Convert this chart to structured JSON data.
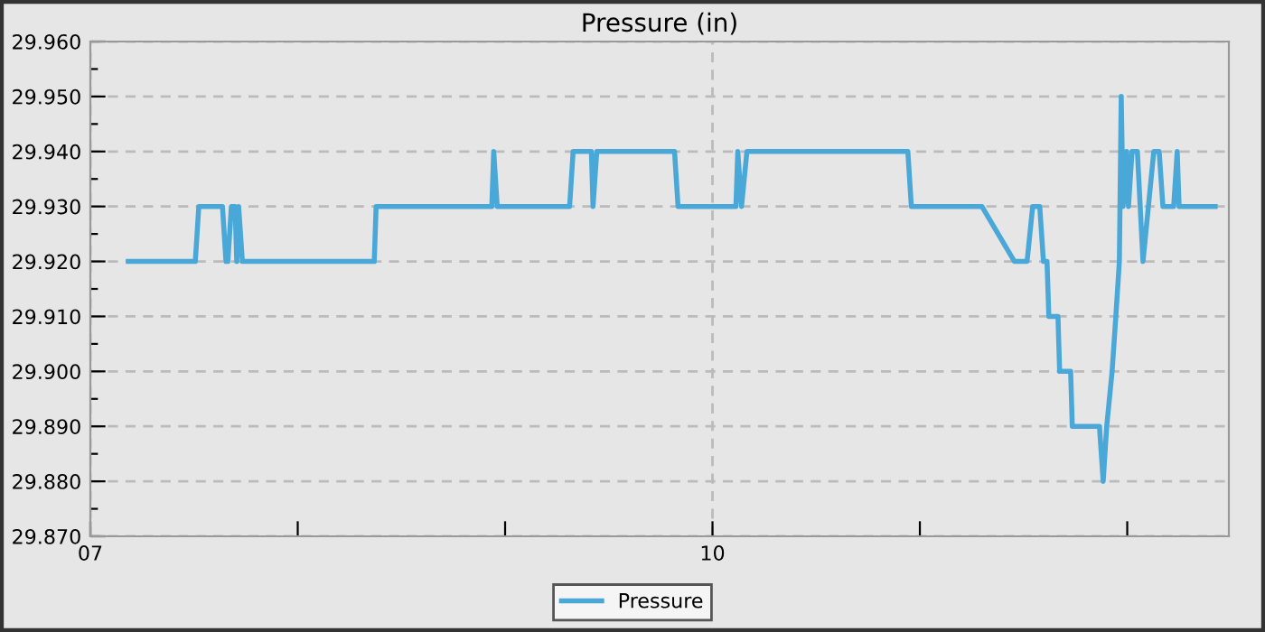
{
  "chart_data": {
    "type": "line",
    "title": "Pressure (in)",
    "xlim": [
      7,
      12.49
    ],
    "xticks": [
      {
        "value": 7,
        "label": "07"
      },
      {
        "value": 8,
        "label": null
      },
      {
        "value": 9,
        "label": null
      },
      {
        "value": 10,
        "label": "10"
      },
      {
        "value": 11,
        "label": null
      },
      {
        "value": 12,
        "label": null
      }
    ],
    "ylim": [
      29.87,
      29.96
    ],
    "yticks": [
      {
        "value": 29.87,
        "label": "29.870"
      },
      {
        "value": 29.875,
        "label": null
      },
      {
        "value": 29.88,
        "label": "29.880"
      },
      {
        "value": 29.885,
        "label": null
      },
      {
        "value": 29.89,
        "label": "29.890"
      },
      {
        "value": 29.895,
        "label": null
      },
      {
        "value": 29.9,
        "label": "29.900"
      },
      {
        "value": 29.905,
        "label": null
      },
      {
        "value": 29.91,
        "label": "29.910"
      },
      {
        "value": 29.915,
        "label": null
      },
      {
        "value": 29.92,
        "label": "29.920"
      },
      {
        "value": 29.925,
        "label": null
      },
      {
        "value": 29.93,
        "label": "29.930"
      },
      {
        "value": 29.935,
        "label": null
      },
      {
        "value": 29.94,
        "label": "29.940"
      },
      {
        "value": 29.945,
        "label": null
      },
      {
        "value": 29.95,
        "label": "29.950"
      },
      {
        "value": 29.955,
        "label": null
      },
      {
        "value": 29.96,
        "label": "29.960"
      }
    ],
    "grid": true,
    "legend": "bottom",
    "marker": "none",
    "line_style": "solid",
    "series": [
      {
        "name": "Pressure",
        "color": "#4aa8d8",
        "x": [
          7.183,
          7.506,
          7.523,
          7.637,
          7.654,
          7.663,
          7.68,
          7.698,
          7.706,
          7.715,
          7.733,
          7.741,
          8.369,
          8.378,
          8.936,
          8.945,
          8.962,
          9.311,
          9.328,
          9.416,
          9.424,
          9.442,
          9.817,
          9.834,
          10.113,
          10.122,
          10.14,
          10.166,
          10.942,
          10.959,
          11.299,
          11.456,
          11.517,
          11.544,
          11.578,
          11.596,
          11.613,
          11.622,
          11.666,
          11.674,
          11.727,
          11.735,
          11.866,
          11.884,
          11.901,
          11.927,
          11.945,
          11.962,
          11.971,
          11.98,
          11.997,
          12.006,
          12.023,
          12.049,
          12.076,
          12.102,
          12.128,
          12.154,
          12.172,
          12.224,
          12.241,
          12.25,
          12.424
        ],
        "values": [
          29.92,
          29.92,
          29.93,
          29.93,
          29.92,
          29.92,
          29.93,
          29.93,
          29.92,
          29.93,
          29.92,
          29.92,
          29.92,
          29.93,
          29.93,
          29.94,
          29.93,
          29.93,
          29.94,
          29.94,
          29.93,
          29.94,
          29.94,
          29.93,
          29.93,
          29.94,
          29.93,
          29.94,
          29.94,
          29.93,
          29.93,
          29.92,
          29.92,
          29.93,
          29.93,
          29.92,
          29.92,
          29.91,
          29.91,
          29.9,
          29.9,
          29.89,
          29.89,
          29.88,
          29.89,
          29.9,
          29.91,
          29.92,
          29.95,
          29.93,
          29.94,
          29.93,
          29.94,
          29.94,
          29.92,
          29.93,
          29.94,
          29.94,
          29.93,
          29.93,
          29.94,
          29.93,
          29.93
        ]
      }
    ]
  }
}
